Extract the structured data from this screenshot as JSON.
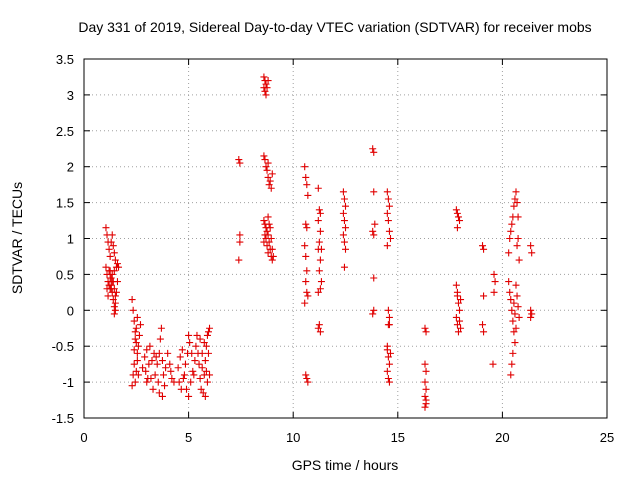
{
  "chart_data": {
    "type": "scatter",
    "title": "Day 331 of 2019, Sidereal Day-to-day VTEC variation (SDTVAR) for receiver mobs",
    "xlabel": "GPS time / hours",
    "ylabel": "SDTVAR / TECUs",
    "xlim": [
      0,
      25
    ],
    "ylim": [
      -1.5,
      3.5
    ],
    "xticks": [
      "0",
      "5",
      "10",
      "15",
      "20",
      "25"
    ],
    "yticks": [
      "-1.5",
      "-1",
      "-0.5",
      "0",
      "0.5",
      "1",
      "1.5",
      "2",
      "2.5",
      "3",
      "3.5"
    ],
    "grid": true,
    "marker": "plus",
    "color": "#e00000",
    "series": [
      {
        "name": "SDTVAR",
        "points": [
          [
            1.05,
            1.15
          ],
          [
            1.1,
            1.05
          ],
          [
            1.15,
            0.95
          ],
          [
            1.2,
            0.85
          ],
          [
            1.25,
            0.75
          ],
          [
            1.3,
            0.95
          ],
          [
            1.35,
            1.05
          ],
          [
            1.4,
            0.9
          ],
          [
            1.45,
            0.8
          ],
          [
            1.5,
            0.7
          ],
          [
            1.05,
            0.6
          ],
          [
            1.1,
            0.5
          ],
          [
            1.15,
            0.4
          ],
          [
            1.2,
            0.35
          ],
          [
            1.25,
            0.3
          ],
          [
            1.3,
            0.45
          ],
          [
            1.35,
            0.5
          ],
          [
            1.4,
            0.4
          ],
          [
            1.45,
            0.3
          ],
          [
            1.5,
            0.2
          ],
          [
            1.2,
            0.55
          ],
          [
            1.25,
            0.45
          ],
          [
            1.3,
            0.35
          ],
          [
            1.35,
            0.25
          ],
          [
            1.4,
            0.15
          ],
          [
            1.45,
            0.05
          ],
          [
            1.5,
            0.1
          ],
          [
            1.55,
            0.25
          ],
          [
            1.6,
            0.4
          ],
          [
            1.55,
            0.6
          ],
          [
            1.6,
            0.65
          ],
          [
            1.65,
            0.6
          ],
          [
            1.5,
            0.0
          ],
          [
            1.45,
            -0.05
          ],
          [
            1.3,
            0.3
          ],
          [
            1.1,
            0.3
          ],
          [
            1.15,
            0.2
          ],
          [
            1.25,
            0.55
          ],
          [
            1.35,
            0.4
          ],
          [
            1.45,
            0.55
          ],
          [
            2.3,
            0.15
          ],
          [
            2.35,
            0.0
          ],
          [
            2.4,
            -0.15
          ],
          [
            2.45,
            -0.3
          ],
          [
            2.5,
            -0.45
          ],
          [
            2.55,
            -0.6
          ],
          [
            2.4,
            -0.75
          ],
          [
            2.35,
            -0.9
          ],
          [
            2.3,
            -1.05
          ],
          [
            2.45,
            -1.0
          ],
          [
            2.5,
            -0.85
          ],
          [
            2.55,
            -0.7
          ],
          [
            2.6,
            -0.5
          ],
          [
            2.65,
            -0.35
          ],
          [
            2.7,
            -0.2
          ],
          [
            2.5,
            -0.25
          ],
          [
            2.45,
            -0.4
          ],
          [
            2.55,
            -0.1
          ],
          [
            2.4,
            -0.55
          ],
          [
            2.6,
            -0.9
          ],
          [
            2.8,
            -0.8
          ],
          [
            2.9,
            -0.65
          ],
          [
            3.0,
            -0.55
          ],
          [
            3.1,
            -0.75
          ],
          [
            3.2,
            -0.95
          ],
          [
            3.3,
            -1.1
          ],
          [
            3.4,
            -0.9
          ],
          [
            3.5,
            -0.75
          ],
          [
            3.6,
            -0.6
          ],
          [
            3.65,
            -0.4
          ],
          [
            3.7,
            -0.25
          ],
          [
            3.75,
            -0.7
          ],
          [
            3.8,
            -0.9
          ],
          [
            3.85,
            -1.05
          ],
          [
            3.75,
            -1.2
          ],
          [
            3.9,
            -0.8
          ],
          [
            4.0,
            -0.6
          ],
          [
            4.1,
            -0.75
          ],
          [
            4.2,
            -0.95
          ],
          [
            4.3,
            -1.0
          ],
          [
            3.05,
            -0.95
          ],
          [
            3.15,
            -0.5
          ],
          [
            3.35,
            -0.6
          ],
          [
            3.55,
            -1.0
          ],
          [
            3.0,
            -1.0
          ],
          [
            2.95,
            -0.85
          ],
          [
            3.25,
            -0.7
          ],
          [
            3.45,
            -0.65
          ],
          [
            3.6,
            -1.15
          ],
          [
            4.15,
            -0.85
          ],
          [
            4.5,
            -0.8
          ],
          [
            4.6,
            -0.65
          ],
          [
            4.7,
            -0.55
          ],
          [
            4.8,
            -0.9
          ],
          [
            4.9,
            -1.1
          ],
          [
            5.0,
            -1.2
          ],
          [
            5.1,
            -1.0
          ],
          [
            5.2,
            -0.85
          ],
          [
            5.3,
            -0.7
          ],
          [
            5.35,
            -0.5
          ],
          [
            4.75,
            -0.95
          ],
          [
            4.85,
            -0.75
          ],
          [
            4.95,
            -0.6
          ],
          [
            5.05,
            -0.45
          ],
          [
            5.15,
            -0.6
          ],
          [
            5.25,
            -0.9
          ],
          [
            4.55,
            -1.0
          ],
          [
            4.65,
            -1.1
          ],
          [
            5.4,
            -0.35
          ],
          [
            5.0,
            -0.35
          ],
          [
            5.5,
            -0.75
          ],
          [
            5.55,
            -0.95
          ],
          [
            5.6,
            -1.1
          ],
          [
            5.7,
            -1.15
          ],
          [
            5.75,
            -0.9
          ],
          [
            5.8,
            -0.7
          ],
          [
            5.85,
            -0.5
          ],
          [
            5.9,
            -0.35
          ],
          [
            5.95,
            -0.3
          ],
          [
            6.0,
            -0.25
          ],
          [
            5.65,
            -0.6
          ],
          [
            5.75,
            -0.45
          ],
          [
            5.85,
            -0.85
          ],
          [
            5.95,
            -0.6
          ],
          [
            5.55,
            -0.4
          ],
          [
            5.45,
            -0.6
          ],
          [
            5.65,
            -0.8
          ],
          [
            5.9,
            -1.0
          ],
          [
            6.0,
            -0.9
          ],
          [
            5.8,
            -1.2
          ],
          [
            7.4,
            2.1
          ],
          [
            7.45,
            2.05
          ],
          [
            7.45,
            1.05
          ],
          [
            7.45,
            0.95
          ],
          [
            7.4,
            0.7
          ],
          [
            8.6,
            3.25
          ],
          [
            8.65,
            3.2
          ],
          [
            8.7,
            3.15
          ],
          [
            8.6,
            3.1
          ],
          [
            8.65,
            3.05
          ],
          [
            8.7,
            3.0
          ],
          [
            8.8,
            3.2
          ],
          [
            8.75,
            3.1
          ],
          [
            8.6,
            2.15
          ],
          [
            8.65,
            2.1
          ],
          [
            8.7,
            2.0
          ],
          [
            8.75,
            1.95
          ],
          [
            8.8,
            1.85
          ],
          [
            8.85,
            1.75
          ],
          [
            8.9,
            1.8
          ],
          [
            8.95,
            1.7
          ],
          [
            9.0,
            1.9
          ],
          [
            8.8,
            2.05
          ],
          [
            8.6,
            1.25
          ],
          [
            8.65,
            1.2
          ],
          [
            8.7,
            1.15
          ],
          [
            8.75,
            1.1
          ],
          [
            8.8,
            1.05
          ],
          [
            8.85,
            0.95
          ],
          [
            8.9,
            0.85
          ],
          [
            8.95,
            0.75
          ],
          [
            9.0,
            0.7
          ],
          [
            8.7,
            1.0
          ],
          [
            8.75,
            0.9
          ],
          [
            8.8,
            1.3
          ],
          [
            8.65,
            1.05
          ],
          [
            8.9,
            1.15
          ],
          [
            8.95,
            1.0
          ],
          [
            9.0,
            0.85
          ],
          [
            8.85,
            1.2
          ],
          [
            8.6,
            0.95
          ],
          [
            9.05,
            0.75
          ],
          [
            8.8,
            0.8
          ],
          [
            10.55,
            2.0
          ],
          [
            10.6,
            1.85
          ],
          [
            10.65,
            1.75
          ],
          [
            10.7,
            1.6
          ],
          [
            10.6,
            1.2
          ],
          [
            10.65,
            1.15
          ],
          [
            10.55,
            0.9
          ],
          [
            10.6,
            0.75
          ],
          [
            10.65,
            0.55
          ],
          [
            10.6,
            0.4
          ],
          [
            10.65,
            0.25
          ],
          [
            10.7,
            0.2
          ],
          [
            10.55,
            0.1
          ],
          [
            10.6,
            -0.9
          ],
          [
            10.65,
            -0.95
          ],
          [
            10.7,
            -1.0
          ],
          [
            11.2,
            1.7
          ],
          [
            11.25,
            1.4
          ],
          [
            11.3,
            1.35
          ],
          [
            11.2,
            1.25
          ],
          [
            11.3,
            1.1
          ],
          [
            11.25,
            0.95
          ],
          [
            11.2,
            0.85
          ],
          [
            11.3,
            0.7
          ],
          [
            11.25,
            0.55
          ],
          [
            11.35,
            0.4
          ],
          [
            11.2,
            0.25
          ],
          [
            11.3,
            0.3
          ],
          [
            11.25,
            -0.2
          ],
          [
            11.3,
            -0.3
          ],
          [
            11.2,
            -0.25
          ],
          [
            11.35,
            0.85
          ],
          [
            12.4,
            1.65
          ],
          [
            12.45,
            1.55
          ],
          [
            12.5,
            1.45
          ],
          [
            12.4,
            1.35
          ],
          [
            12.45,
            1.25
          ],
          [
            12.5,
            1.15
          ],
          [
            12.4,
            1.05
          ],
          [
            12.45,
            0.95
          ],
          [
            12.5,
            0.85
          ],
          [
            12.45,
            0.6
          ],
          [
            13.8,
            2.25
          ],
          [
            13.85,
            2.2
          ],
          [
            13.85,
            1.65
          ],
          [
            13.8,
            1.1
          ],
          [
            13.85,
            1.05
          ],
          [
            13.9,
            1.2
          ],
          [
            13.85,
            0.45
          ],
          [
            13.8,
            -0.05
          ],
          [
            13.85,
            0.0
          ],
          [
            14.5,
            1.65
          ],
          [
            14.55,
            1.55
          ],
          [
            14.6,
            1.45
          ],
          [
            14.5,
            1.35
          ],
          [
            14.55,
            1.25
          ],
          [
            14.6,
            1.1
          ],
          [
            14.65,
            1.0
          ],
          [
            14.5,
            0.9
          ],
          [
            14.55,
            0.0
          ],
          [
            14.6,
            -0.1
          ],
          [
            14.55,
            -0.2
          ],
          [
            14.5,
            -0.55
          ],
          [
            14.55,
            -0.65
          ],
          [
            14.6,
            -0.75
          ],
          [
            14.5,
            -0.85
          ],
          [
            14.55,
            -0.95
          ],
          [
            14.6,
            -1.0
          ],
          [
            14.65,
            -0.6
          ],
          [
            14.5,
            -0.5
          ],
          [
            14.6,
            -0.2
          ],
          [
            16.3,
            -0.25
          ],
          [
            16.35,
            -0.3
          ],
          [
            16.3,
            -0.75
          ],
          [
            16.35,
            -0.85
          ],
          [
            16.3,
            -1.0
          ],
          [
            16.35,
            -1.1
          ],
          [
            16.3,
            -1.2
          ],
          [
            16.35,
            -1.25
          ],
          [
            16.3,
            -1.35
          ],
          [
            16.35,
            -1.3
          ],
          [
            17.8,
            1.4
          ],
          [
            17.85,
            1.35
          ],
          [
            17.9,
            1.3
          ],
          [
            17.95,
            1.25
          ],
          [
            17.85,
            1.15
          ],
          [
            17.8,
            0.35
          ],
          [
            17.85,
            0.2
          ],
          [
            17.9,
            0.1
          ],
          [
            17.95,
            0.0
          ],
          [
            18.0,
            0.15
          ],
          [
            17.8,
            -0.1
          ],
          [
            17.85,
            -0.2
          ],
          [
            17.9,
            -0.3
          ],
          [
            18.0,
            -0.25
          ],
          [
            17.95,
            -0.15
          ],
          [
            17.85,
            0.25
          ],
          [
            19.05,
            0.9
          ],
          [
            19.1,
            0.85
          ],
          [
            19.1,
            0.2
          ],
          [
            19.05,
            -0.2
          ],
          [
            19.1,
            -0.3
          ],
          [
            19.6,
            0.5
          ],
          [
            19.65,
            0.4
          ],
          [
            19.6,
            0.25
          ],
          [
            19.55,
            -0.75
          ],
          [
            20.3,
            0.8
          ],
          [
            20.35,
            1.0
          ],
          [
            20.4,
            1.1
          ],
          [
            20.45,
            1.2
          ],
          [
            20.5,
            1.3
          ],
          [
            20.55,
            1.45
          ],
          [
            20.6,
            1.55
          ],
          [
            20.65,
            1.65
          ],
          [
            20.7,
            1.5
          ],
          [
            20.75,
            1.3
          ],
          [
            20.3,
            0.4
          ],
          [
            20.35,
            0.25
          ],
          [
            20.4,
            0.15
          ],
          [
            20.45,
            0.0
          ],
          [
            20.5,
            -0.15
          ],
          [
            20.55,
            -0.3
          ],
          [
            20.6,
            -0.45
          ],
          [
            20.5,
            -0.6
          ],
          [
            20.45,
            -0.75
          ],
          [
            20.4,
            -0.9
          ],
          [
            20.65,
            0.35
          ],
          [
            20.7,
            0.2
          ],
          [
            20.75,
            0.05
          ],
          [
            20.8,
            -0.1
          ],
          [
            20.65,
            -0.25
          ],
          [
            20.7,
            0.9
          ],
          [
            20.8,
            0.7
          ],
          [
            20.75,
            1.0
          ],
          [
            20.55,
            0.1
          ],
          [
            20.6,
            -0.05
          ],
          [
            21.35,
            0.9
          ],
          [
            21.4,
            0.8
          ],
          [
            21.35,
            0.0
          ],
          [
            21.4,
            -0.05
          ],
          [
            21.35,
            -0.1
          ]
        ]
      }
    ]
  }
}
